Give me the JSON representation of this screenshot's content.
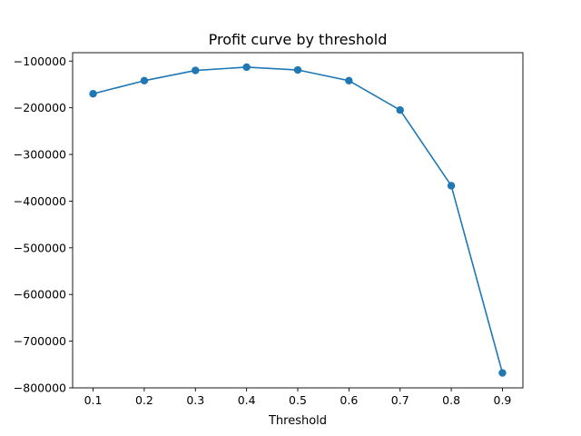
{
  "chart_data": {
    "type": "line",
    "title": "Profit curve by threshold",
    "xlabel": "Threshold",
    "ylabel": "",
    "x": [
      0.1,
      0.2,
      0.3,
      0.4,
      0.5,
      0.6,
      0.7,
      0.8,
      0.9
    ],
    "series": [
      {
        "values": [
          -170000,
          -142000,
          -120000,
          -113000,
          -119000,
          -142000,
          -205000,
          -367000,
          -768000
        ],
        "color": "#1f77b4",
        "marker": "circle"
      }
    ],
    "xlim": [
      0.06,
      0.94
    ],
    "ylim": [
      -800000,
      -82000
    ],
    "xticks": [
      0.1,
      0.2,
      0.3,
      0.4,
      0.5,
      0.6,
      0.7,
      0.8,
      0.9
    ],
    "xtick_labels": [
      "0.1",
      "0.2",
      "0.3",
      "0.4",
      "0.5",
      "0.6",
      "0.7",
      "0.8",
      "0.9"
    ],
    "yticks": [
      -100000,
      -200000,
      -300000,
      -400000,
      -500000,
      -600000,
      -700000,
      -800000
    ],
    "ytick_labels": [
      "−100000",
      "−200000",
      "−300000",
      "−400000",
      "−500000",
      "−600000",
      "−700000",
      "−800000"
    ],
    "grid": false,
    "legend": "none"
  }
}
